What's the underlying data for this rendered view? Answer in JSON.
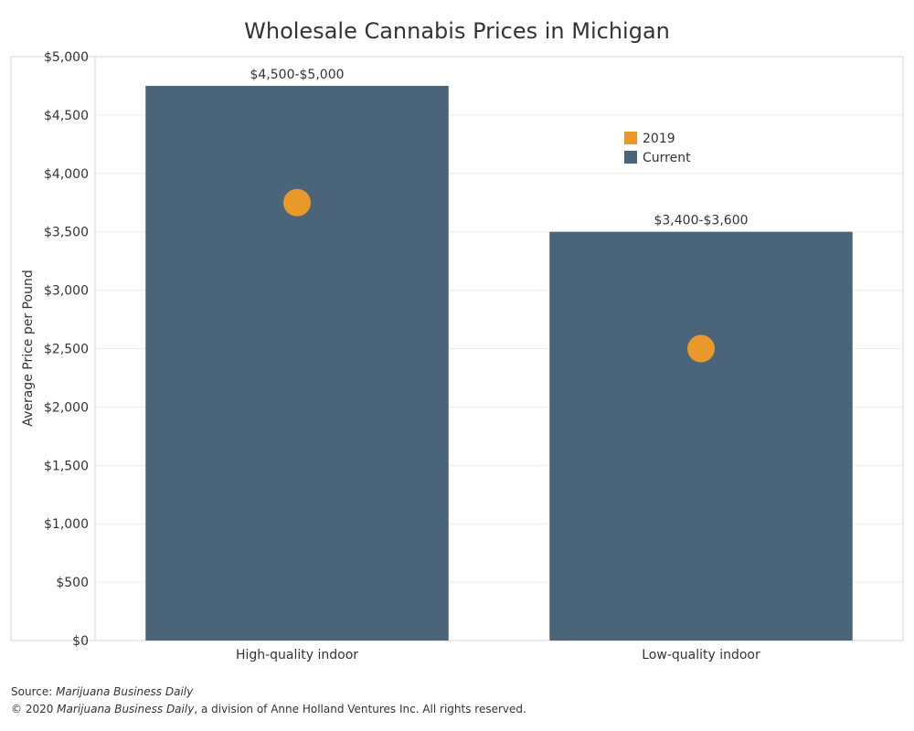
{
  "chart_data": {
    "type": "bar",
    "title": "Wholesale Cannabis Prices in Michigan",
    "ylabel": "Average Price per Pound",
    "xlabel": "",
    "ylim": [
      0,
      5000
    ],
    "yticks": [
      0,
      500,
      1000,
      1500,
      2000,
      2500,
      3000,
      3500,
      4000,
      4500,
      5000
    ],
    "ytick_labels": [
      "$0",
      "$500",
      "$1,000",
      "$1,500",
      "$2,000",
      "$2,500",
      "$3,000",
      "$3,500",
      "$4,000",
      "$4,500",
      "$5,000"
    ],
    "grid": true,
    "legend_position": "top-right",
    "categories": [
      "High-quality indoor",
      "Low-quality indoor"
    ],
    "series": [
      {
        "name": "Current",
        "mark": "bar",
        "color": "#4A6479",
        "values": [
          4750,
          3500
        ],
        "labels": [
          "$4,500-$5,000",
          "$3,400-$3,600"
        ]
      },
      {
        "name": "2019",
        "mark": "dot",
        "color": "#E8992A",
        "values": [
          3750,
          2500
        ]
      }
    ]
  },
  "footer": {
    "source_prefix": "Source: ",
    "source_name": "Marijuana Business Daily",
    "copyright_prefix": "© 2020 ",
    "copyright_name": "Marijuana Business Daily",
    "copyright_suffix": ", a division of Anne Holland Ventures Inc. All rights reserved."
  }
}
